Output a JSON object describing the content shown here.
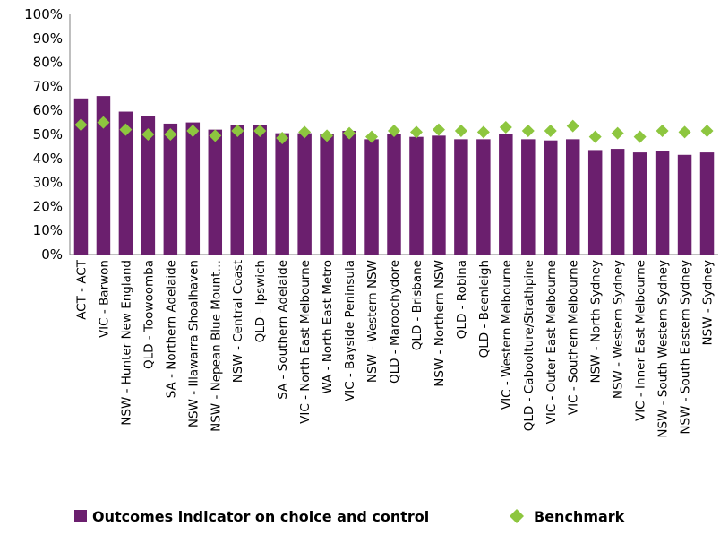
{
  "chart_data": {
    "type": "bar",
    "categories": [
      "ACT - ACT",
      "VIC - Barwon",
      "NSW - Hunter New England",
      "QLD - Toowoomba",
      "SA - Northern Adelaide",
      "NSW - Illawarra Shoalhaven",
      "NSW - Nepean Blue Mount…",
      "NSW - Central Coast",
      "QLD - Ipswich",
      "SA - Southern Adelaide",
      "VIC - North East Melbourne",
      "WA - North East Metro",
      "VIC - Bayside Peninsula",
      "NSW - Western NSW",
      "QLD - Maroochydore",
      "QLD - Brisbane",
      "NSW - Northern NSW",
      "QLD - Robina",
      "QLD - Beenleigh",
      "VIC - Western Melbourne",
      "QLD - Caboolture/Strathpine",
      "VIC - Outer East Melbourne",
      "VIC - Southern Melbourne",
      "NSW - North Sydney",
      "NSW - Western Sydney",
      "VIC - Inner East Melbourne",
      "NSW - South Western Sydney",
      "NSW - South Eastern Sydney",
      "NSW - Sydney"
    ],
    "series": [
      {
        "name": "Outcomes indicator on choice and control",
        "kind": "bar",
        "color": "#6b1f6e",
        "values": [
          65,
          66,
          59.5,
          57.5,
          54.5,
          55,
          52,
          54,
          54,
          50.5,
          50.5,
          50,
          51.5,
          48,
          50,
          49,
          49.5,
          48,
          48,
          50,
          48,
          47.5,
          48,
          43.5,
          44,
          42.5,
          43,
          41.5,
          42.5
        ]
      },
      {
        "name": "Benchmark",
        "kind": "marker",
        "color": "#8dc63f",
        "values": [
          54,
          55,
          52,
          50,
          50,
          51.5,
          49.5,
          51.5,
          51.5,
          48.5,
          51,
          49.5,
          50.5,
          49,
          51.5,
          51,
          52,
          51.5,
          51,
          53,
          51.5,
          51.5,
          53.5,
          49,
          50.5,
          49,
          51.5,
          51,
          51.5
        ]
      }
    ],
    "yticks": [
      "0%",
      "10%",
      "20%",
      "30%",
      "40%",
      "50%",
      "60%",
      "70%",
      "80%",
      "90%",
      "100%"
    ],
    "ylim": [
      0,
      100
    ],
    "grid": false,
    "legend": "bottom"
  }
}
